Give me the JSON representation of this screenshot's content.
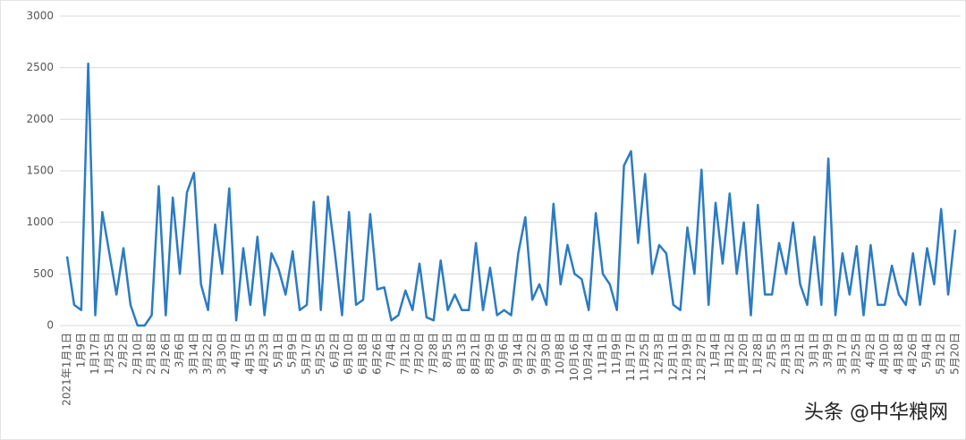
{
  "chart_data": {
    "type": "line",
    "categories": [
      "2021年1月1日",
      null,
      "1月9日",
      null,
      "1月17日",
      null,
      "1月25日",
      null,
      "2月2日",
      null,
      "2月10日",
      null,
      "2月18日",
      null,
      "2月26日",
      null,
      "3月6日",
      null,
      "3月14日",
      null,
      "3月22日",
      null,
      "3月30日",
      null,
      "4月7日",
      null,
      "4月15日",
      null,
      "4月23日",
      null,
      "5月1日",
      null,
      "5月9日",
      null,
      "5月17日",
      null,
      "5月25日",
      null,
      "6月2日",
      null,
      "6月10日",
      null,
      "6月18日",
      null,
      "6月26日",
      null,
      "7月4日",
      null,
      "7月12日",
      null,
      "7月20日",
      null,
      "7月28日",
      null,
      "8月5日",
      null,
      "8月13日",
      null,
      "8月21日",
      null,
      "8月29日",
      null,
      "9月6日",
      null,
      "9月14日",
      null,
      "9月22日",
      null,
      "9月30日",
      null,
      "10月8日",
      null,
      "10月16日",
      null,
      "10月24日",
      null,
      "11月1日",
      null,
      "11月9日",
      null,
      "11月17日",
      null,
      "11月25日",
      null,
      "12月3日",
      null,
      "12月11日",
      null,
      "12月19日",
      null,
      "12月27日",
      null,
      "1月4日",
      null,
      "1月12日",
      null,
      "1月20日",
      null,
      "1月28日",
      null,
      "2月5日",
      null,
      "2月13日",
      null,
      "2月21日",
      null,
      "3月1日",
      null,
      "3月9日",
      null,
      "3月17日",
      null,
      "3月25日",
      null,
      "4月2日",
      null,
      "4月10日",
      null,
      "4月18日",
      null,
      "4月26日",
      null,
      "5月4日",
      null,
      "5月12日",
      null,
      "5月20日"
    ],
    "values": [
      670,
      200,
      150,
      2540,
      100,
      1100,
      700,
      300,
      750,
      200,
      0,
      0,
      100,
      1350,
      100,
      1240,
      500,
      1290,
      1480,
      400,
      150,
      980,
      500,
      1330,
      50,
      750,
      200,
      860,
      100,
      700,
      550,
      300,
      720,
      150,
      200,
      1200,
      150,
      1250,
      700,
      100,
      1100,
      200,
      250,
      1080,
      350,
      370,
      50,
      100,
      340,
      150,
      600,
      80,
      50,
      630,
      150,
      300,
      150,
      150,
      800,
      150,
      560,
      100,
      150,
      100,
      700,
      1050,
      250,
      400,
      200,
      1180,
      400,
      780,
      500,
      450,
      150,
      1090,
      500,
      400,
      150,
      1550,
      1690,
      800,
      1470,
      500,
      780,
      700,
      200,
      150,
      950,
      500,
      1510,
      200,
      1190,
      600,
      1280,
      500,
      1000,
      100,
      1170,
      300,
      300,
      800,
      500,
      1000,
      400,
      200,
      860,
      200,
      1620,
      100,
      700,
      300,
      770,
      100,
      780,
      200,
      200,
      580,
      300,
      200,
      700,
      200,
      750,
      400,
      1130,
      300,
      930
    ],
    "color": "#2b7bc4",
    "ylim": [
      0,
      3000
    ],
    "yticks": [
      0,
      500,
      1000,
      1500,
      2000,
      2500,
      3000
    ],
    "grid": true,
    "footer": "头条 @中华粮网"
  }
}
